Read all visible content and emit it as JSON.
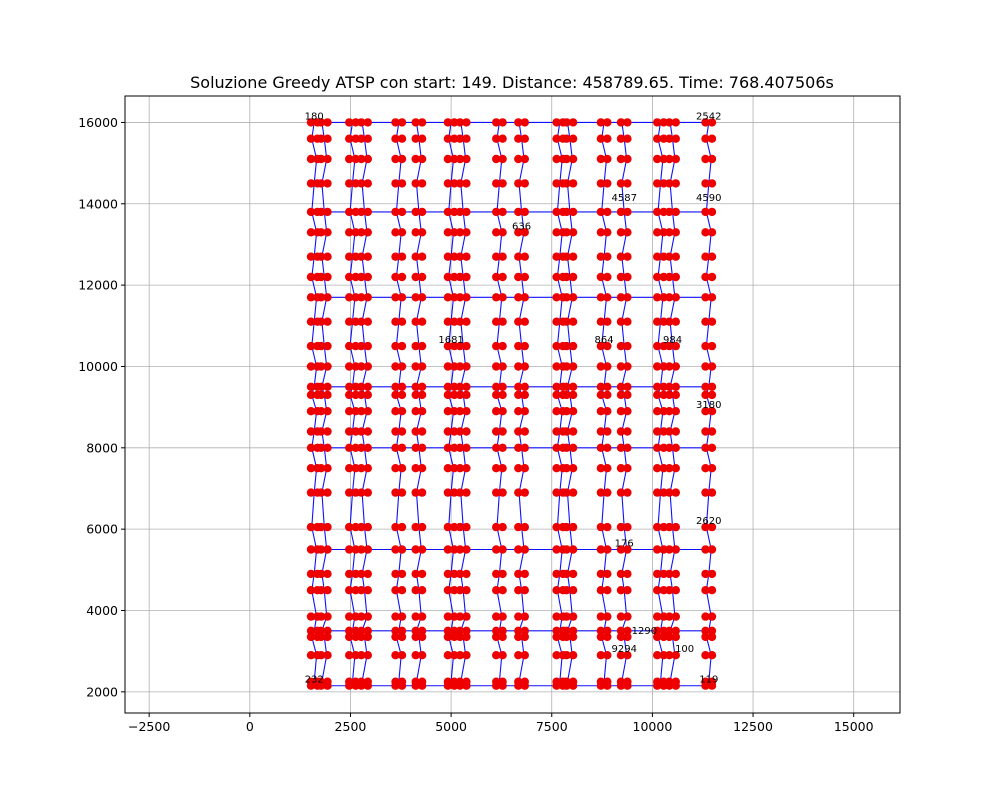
{
  "chart_data": {
    "type": "scatter",
    "title": "Soluzione Greedy ATSP con start: 149. Distance: 458789.65. Time: 768.407506s",
    "xlabel": "",
    "ylabel": "",
    "xlim": [
      -3100,
      16150
    ],
    "ylim": [
      1480,
      16650
    ],
    "x_ticks": [
      -2500,
      0,
      2500,
      5000,
      7500,
      10000,
      12500,
      15000
    ],
    "y_ticks": [
      2000,
      4000,
      6000,
      8000,
      10000,
      12000,
      14000,
      16000
    ],
    "x_tick_labels": [
      "−2500",
      "0",
      "2500",
      "5000",
      "7500",
      "10000",
      "12500",
      "15000"
    ],
    "y_tick_labels": [
      "2000",
      "4000",
      "6000",
      "8000",
      "10000",
      "12000",
      "14000",
      "16000"
    ],
    "grid": true,
    "colors": {
      "nodes": "#ee0000",
      "route": "#1010ff"
    },
    "node_columns_x": [
      1600,
      1850,
      2550,
      2850,
      3700,
      4200,
      5000,
      5300,
      6200,
      6750,
      7700,
      7950,
      8800,
      9300,
      10200,
      10500,
      11400
    ],
    "node_rows_y": [
      2150,
      2250,
      2900,
      3350,
      3500,
      3850,
      4500,
      4900,
      5500,
      6050,
      6900,
      7500,
      8000,
      8400,
      8900,
      9300,
      9500,
      10000,
      10500,
      11100,
      11700,
      12200,
      12700,
      13300,
      13800,
      14500,
      15100,
      15600,
      16000
    ],
    "node_labels_sample": [
      {
        "x": 1600,
        "y": 16000,
        "label": "180"
      },
      {
        "x": 11400,
        "y": 16000,
        "label": "2542"
      },
      {
        "x": 9300,
        "y": 14000,
        "label": "4587"
      },
      {
        "x": 11400,
        "y": 14000,
        "label": "4590"
      },
      {
        "x": 6750,
        "y": 13300,
        "label": "636"
      },
      {
        "x": 8800,
        "y": 10500,
        "label": "864"
      },
      {
        "x": 10500,
        "y": 10500,
        "label": "984"
      },
      {
        "x": 5000,
        "y": 10500,
        "label": "1681"
      },
      {
        "x": 11400,
        "y": 8900,
        "label": "3180"
      },
      {
        "x": 11400,
        "y": 6050,
        "label": "2620"
      },
      {
        "x": 9300,
        "y": 5500,
        "label": "176"
      },
      {
        "x": 9800,
        "y": 3350,
        "label": "1290"
      },
      {
        "x": 10800,
        "y": 2900,
        "label": "100"
      },
      {
        "x": 9300,
        "y": 2900,
        "label": "9294"
      },
      {
        "x": 11400,
        "y": 2150,
        "label": "119"
      },
      {
        "x": 1600,
        "y": 2150,
        "label": "232"
      }
    ]
  }
}
